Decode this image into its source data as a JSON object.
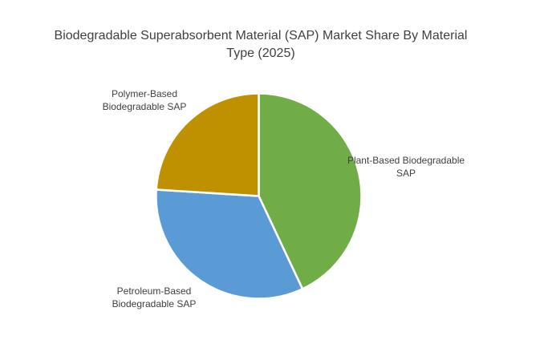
{
  "chart_data": {
    "type": "pie",
    "title": "Biodegradable Superabsorbent Material (SAP) Market Share By Material Type (2025)",
    "legend": "none",
    "data_labels": "category names only, no percentage values shown",
    "start_angle_deg": 0,
    "direction": "clockwise",
    "values_unit": "percent (estimated from slice arc angles)",
    "slices": [
      {
        "label": "Plant-Based Biodegradable SAP",
        "value": 43,
        "color": "#70AD47"
      },
      {
        "label": "Petroleum-Based Biodegradable SAP",
        "value": 33,
        "color": "#5B9BD5"
      },
      {
        "label": "Polymer-Based Biodegradable SAP",
        "value": 24,
        "color": "#BF9000"
      }
    ]
  },
  "colors": {
    "background": "#FFFFFF",
    "title_text": "#404040",
    "label_text": "#404040",
    "slice_separator": "#FFFFFF"
  }
}
